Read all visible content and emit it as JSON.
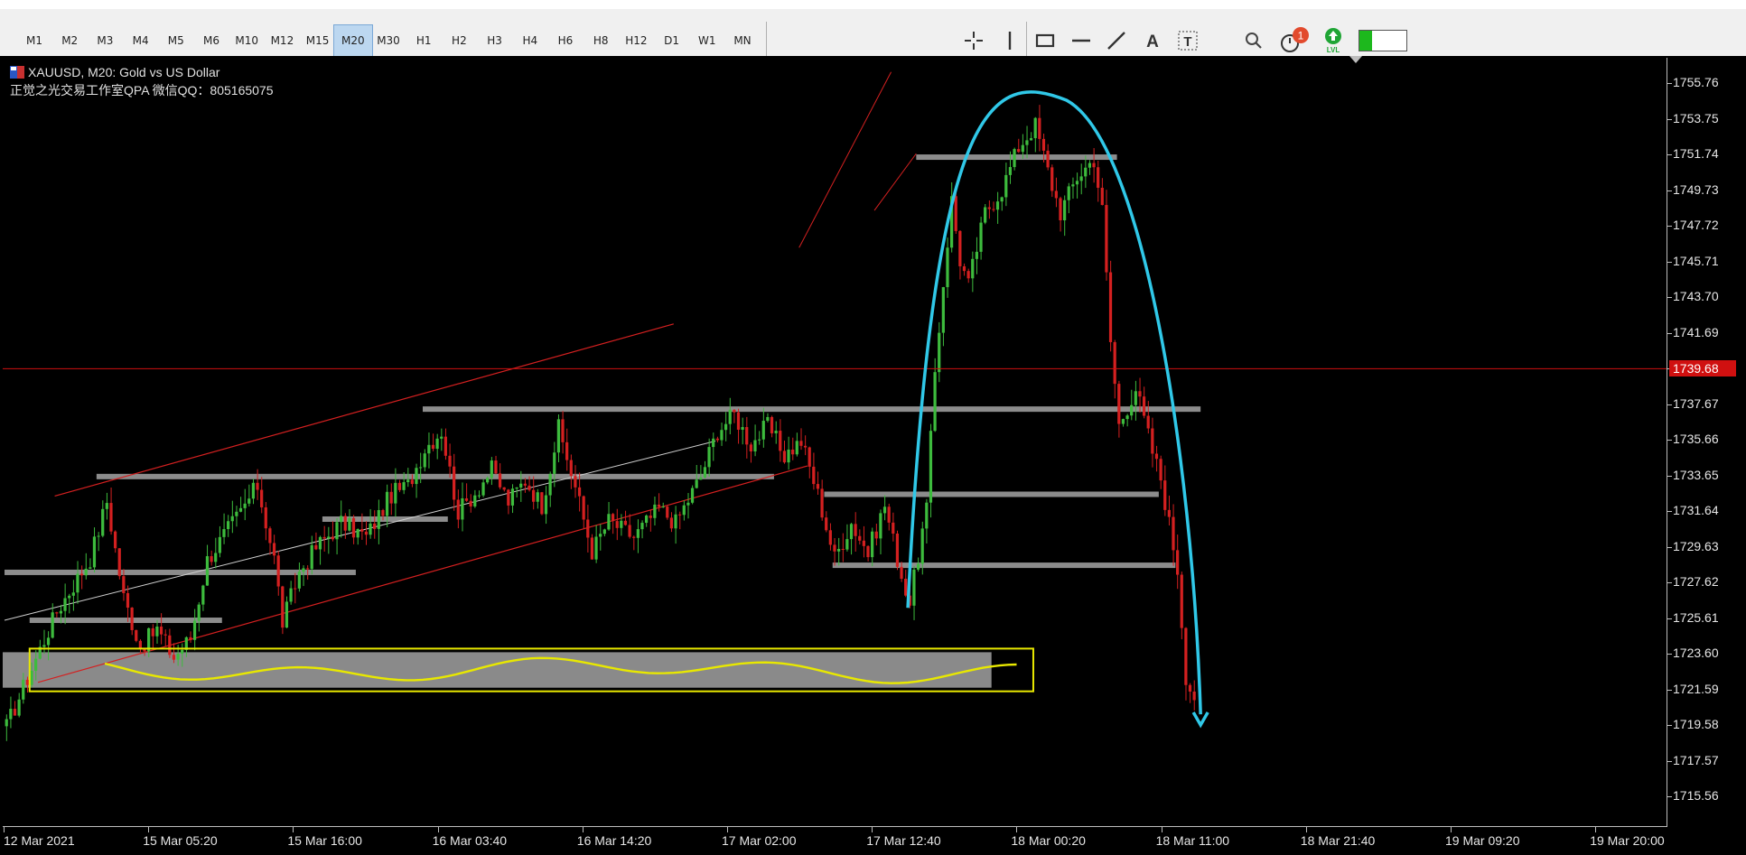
{
  "timeframes": [
    "M1",
    "M2",
    "M3",
    "M4",
    "M5",
    "M6",
    "M10",
    "M12",
    "M15",
    "M20",
    "M30",
    "H1",
    "H2",
    "H3",
    "H4",
    "H6",
    "H8",
    "H12",
    "D1",
    "W1",
    "MN"
  ],
  "active_timeframe": "M20",
  "tools": [
    "crosshair-icon",
    "vertical-line-icon",
    "rectangle-icon",
    "horizontal-line-icon",
    "trendline-icon",
    "text-icon",
    "text-label-icon"
  ],
  "right_icons": {
    "search": "search-icon",
    "notifications_badge": "1",
    "signal_label": "LVL"
  },
  "chart": {
    "symbol_line": "XAUUSD, M20:  Gold vs US Dollar",
    "watermark_line": "正觉之光交易工作室QPA 微信QQ：805165075",
    "current_price": "1739.68",
    "price_line_color": "#d01010",
    "bull_color": "#3dbb3d",
    "bear_color": "#d42020",
    "annotation_color": "#30c8e8",
    "highlight_color": "#e8e800"
  },
  "chart_data": {
    "type": "candlestick",
    "symbol": "XAUUSD",
    "timeframe": "M20",
    "y_ticks": [
      "1755.76",
      "1753.75",
      "1751.74",
      "1749.73",
      "1747.72",
      "1745.71",
      "1743.70",
      "1741.69",
      "1739.68",
      "1737.67",
      "1735.66",
      "1733.65",
      "1731.64",
      "1729.63",
      "1727.62",
      "1725.61",
      "1723.60",
      "1721.59",
      "1719.58",
      "1717.57",
      "1715.56"
    ],
    "ylim": [
      1713.9,
      1757.2
    ],
    "x_ticks": [
      "12 Mar 2021",
      "15 Mar 05:20",
      "15 Mar 16:00",
      "16 Mar 03:40",
      "16 Mar 14:20",
      "17 Mar 02:00",
      "17 Mar 12:40",
      "18 Mar 00:20",
      "18 Mar 11:00",
      "18 Mar 21:40",
      "19 Mar 09:20",
      "19 Mar 20:00"
    ],
    "last_price": 1739.68,
    "price_path": [
      [
        0,
        1719.5
      ],
      [
        6,
        1722.8
      ],
      [
        12,
        1726.0
      ],
      [
        20,
        1729.0
      ],
      [
        24,
        1732.2
      ],
      [
        28,
        1726.8
      ],
      [
        32,
        1724.0
      ],
      [
        36,
        1725.0
      ],
      [
        40,
        1723.4
      ],
      [
        44,
        1724.5
      ],
      [
        48,
        1728.9
      ],
      [
        52,
        1730.3
      ],
      [
        56,
        1731.6
      ],
      [
        60,
        1733.1
      ],
      [
        64,
        1729.0
      ],
      [
        66,
        1725.4
      ],
      [
        70,
        1728.2
      ],
      [
        74,
        1729.6
      ],
      [
        80,
        1731.0
      ],
      [
        86,
        1730.2
      ],
      [
        92,
        1732.6
      ],
      [
        96,
        1733.1
      ],
      [
        100,
        1735.2
      ],
      [
        104,
        1736.2
      ],
      [
        108,
        1731.6
      ],
      [
        112,
        1732.7
      ],
      [
        116,
        1734.0
      ],
      [
        120,
        1732.2
      ],
      [
        124,
        1733.4
      ],
      [
        128,
        1732.0
      ],
      [
        132,
        1736.3
      ],
      [
        136,
        1733.0
      ],
      [
        140,
        1729.4
      ],
      [
        144,
        1731.1
      ],
      [
        150,
        1730.2
      ],
      [
        156,
        1731.8
      ],
      [
        160,
        1731.0
      ],
      [
        166,
        1733.6
      ],
      [
        170,
        1736.2
      ],
      [
        174,
        1737.1
      ],
      [
        178,
        1735.4
      ],
      [
        182,
        1736.5
      ],
      [
        186,
        1734.8
      ],
      [
        190,
        1735.6
      ],
      [
        194,
        1732.6
      ],
      [
        198,
        1729.0
      ],
      [
        202,
        1731.0
      ],
      [
        206,
        1729.3
      ],
      [
        210,
        1732.0
      ],
      [
        214,
        1728.0
      ],
      [
        216,
        1726.5
      ],
      [
        220,
        1731.8
      ],
      [
        222,
        1739.5
      ],
      [
        224,
        1744.5
      ],
      [
        226,
        1749.2
      ],
      [
        228,
        1745.8
      ],
      [
        230,
        1744.4
      ],
      [
        234,
        1748.5
      ],
      [
        238,
        1749.8
      ],
      [
        242,
        1752.2
      ],
      [
        246,
        1753.4
      ],
      [
        250,
        1750.0
      ],
      [
        252,
        1748.5
      ],
      [
        256,
        1750.5
      ],
      [
        260,
        1751.5
      ],
      [
        262,
        1748.6
      ],
      [
        264,
        1741.2
      ],
      [
        266,
        1736.5
      ],
      [
        270,
        1738.6
      ],
      [
        274,
        1735.0
      ],
      [
        276,
        1733.5
      ],
      [
        280,
        1728.4
      ],
      [
        282,
        1722.4
      ],
      [
        284,
        1721.0
      ]
    ],
    "horizontal_levels": [
      {
        "price": 1751.6,
        "from": 218,
        "to": 266
      },
      {
        "price": 1737.4,
        "from": 100,
        "to": 286
      },
      {
        "price": 1733.6,
        "from": 22,
        "to": 184
      },
      {
        "price": 1732.6,
        "from": 196,
        "to": 276
      },
      {
        "price": 1731.2,
        "from": 76,
        "to": 106
      },
      {
        "price": 1728.2,
        "from": 0,
        "to": 84
      },
      {
        "price": 1728.6,
        "from": 198,
        "to": 280
      },
      {
        "price": 1725.5,
        "from": 6,
        "to": 52
      }
    ],
    "support_zone": [
      1721.7,
      1723.7
    ],
    "annotation_arrow": "down"
  }
}
